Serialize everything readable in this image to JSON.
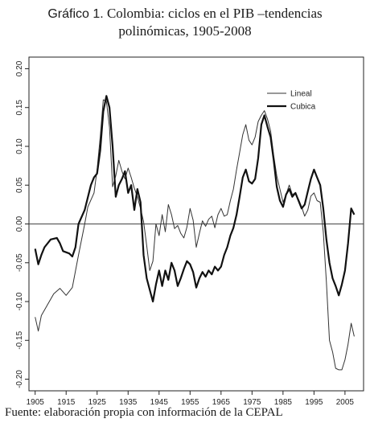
{
  "title": {
    "lead": "Gráfico 1.",
    "line1": "Colombia: ciclos en el PIB –tendencias",
    "line2": "polinómicas, 1905-2008"
  },
  "source": "Fuente: elaboración propia con información de la CEPAL",
  "chart_data": {
    "type": "line",
    "title": "Gráfico 1. Colombia: ciclos en el PIB –tendencias polinómicas, 1905-2008",
    "xlabel": "",
    "ylabel": "",
    "xlim": [
      1903,
      2011
    ],
    "ylim": [
      -0.215,
      0.215
    ],
    "x_ticks": [
      1905,
      1915,
      1925,
      1935,
      1945,
      1955,
      1965,
      1975,
      1985,
      1995,
      2005
    ],
    "y_ticks": [
      -0.2,
      -0.15,
      -0.1,
      -0.05,
      0.0,
      0.05,
      0.1,
      0.15,
      0.2
    ],
    "y_tick_labels": [
      "-0.20",
      "-0.15",
      "-0.10",
      "-0.05",
      "0.00",
      "0.05",
      "0.10",
      "0.15",
      "0.20"
    ],
    "reference_line": 0,
    "grid": false,
    "legend_position": "top-right",
    "series": [
      {
        "name": "Lineal",
        "color": "#333333",
        "points": [
          [
            1905,
            -0.12
          ],
          [
            1906,
            -0.138
          ],
          [
            1907,
            -0.118
          ],
          [
            1909,
            -0.104
          ],
          [
            1911,
            -0.09
          ],
          [
            1913,
            -0.083
          ],
          [
            1915,
            -0.092
          ],
          [
            1917,
            -0.082
          ],
          [
            1919,
            -0.04
          ],
          [
            1921,
            0.0
          ],
          [
            1922,
            0.022
          ],
          [
            1924,
            0.04
          ],
          [
            1925,
            0.07
          ],
          [
            1926,
            0.112
          ],
          [
            1927,
            0.16
          ],
          [
            1928,
            0.158
          ],
          [
            1929,
            0.125
          ],
          [
            1930,
            0.048
          ],
          [
            1931,
            0.062
          ],
          [
            1932,
            0.082
          ],
          [
            1933,
            0.068
          ],
          [
            1934,
            0.058
          ],
          [
            1935,
            0.072
          ],
          [
            1936,
            0.06
          ],
          [
            1937,
            0.046
          ],
          [
            1938,
            0.035
          ],
          [
            1939,
            0.02
          ],
          [
            1940,
            0.003
          ],
          [
            1941,
            -0.028
          ],
          [
            1942,
            -0.06
          ],
          [
            1943,
            -0.048
          ],
          [
            1944,
            0.0
          ],
          [
            1945,
            -0.015
          ],
          [
            1946,
            0.012
          ],
          [
            1947,
            -0.01
          ],
          [
            1948,
            0.025
          ],
          [
            1949,
            0.012
          ],
          [
            1950,
            -0.006
          ],
          [
            1951,
            -0.002
          ],
          [
            1952,
            -0.012
          ],
          [
            1953,
            -0.018
          ],
          [
            1954,
            -0.004
          ],
          [
            1955,
            0.02
          ],
          [
            1956,
            0.005
          ],
          [
            1957,
            -0.03
          ],
          [
            1958,
            -0.012
          ],
          [
            1959,
            0.004
          ],
          [
            1960,
            -0.003
          ],
          [
            1961,
            0.006
          ],
          [
            1962,
            0.01
          ],
          [
            1963,
            -0.005
          ],
          [
            1964,
            0.012
          ],
          [
            1965,
            0.02
          ],
          [
            1966,
            0.01
          ],
          [
            1967,
            0.012
          ],
          [
            1968,
            0.03
          ],
          [
            1969,
            0.045
          ],
          [
            1970,
            0.07
          ],
          [
            1971,
            0.092
          ],
          [
            1972,
            0.115
          ],
          [
            1973,
            0.128
          ],
          [
            1974,
            0.108
          ],
          [
            1975,
            0.102
          ],
          [
            1976,
            0.112
          ],
          [
            1977,
            0.132
          ],
          [
            1978,
            0.14
          ],
          [
            1979,
            0.146
          ],
          [
            1980,
            0.135
          ],
          [
            1981,
            0.12
          ],
          [
            1982,
            0.088
          ],
          [
            1983,
            0.062
          ],
          [
            1984,
            0.045
          ],
          [
            1985,
            0.028
          ],
          [
            1986,
            0.038
          ],
          [
            1987,
            0.05
          ],
          [
            1988,
            0.038
          ],
          [
            1989,
            0.04
          ],
          [
            1990,
            0.032
          ],
          [
            1991,
            0.022
          ],
          [
            1992,
            0.01
          ],
          [
            1993,
            0.018
          ],
          [
            1994,
            0.036
          ],
          [
            1995,
            0.04
          ],
          [
            1996,
            0.03
          ],
          [
            1997,
            0.028
          ],
          [
            1998,
            -0.01
          ],
          [
            1999,
            -0.075
          ],
          [
            2000,
            -0.15
          ],
          [
            2001,
            -0.165
          ],
          [
            2002,
            -0.186
          ],
          [
            2003,
            -0.188
          ],
          [
            2004,
            -0.188
          ],
          [
            2005,
            -0.175
          ],
          [
            2006,
            -0.155
          ],
          [
            2007,
            -0.128
          ],
          [
            2008,
            -0.145
          ]
        ]
      },
      {
        "name": "Cubica",
        "color": "#111111",
        "points": [
          [
            1905,
            -0.032
          ],
          [
            1906,
            -0.052
          ],
          [
            1907,
            -0.04
          ],
          [
            1908,
            -0.03
          ],
          [
            1910,
            -0.02
          ],
          [
            1912,
            -0.018
          ],
          [
            1913,
            -0.025
          ],
          [
            1914,
            -0.035
          ],
          [
            1916,
            -0.038
          ],
          [
            1917,
            -0.042
          ],
          [
            1918,
            -0.03
          ],
          [
            1919,
            0.0
          ],
          [
            1921,
            0.018
          ],
          [
            1923,
            0.05
          ],
          [
            1924,
            0.06
          ],
          [
            1925,
            0.065
          ],
          [
            1926,
            0.095
          ],
          [
            1927,
            0.145
          ],
          [
            1928,
            0.165
          ],
          [
            1929,
            0.15
          ],
          [
            1930,
            0.1
          ],
          [
            1931,
            0.035
          ],
          [
            1932,
            0.05
          ],
          [
            1933,
            0.058
          ],
          [
            1934,
            0.068
          ],
          [
            1935,
            0.04
          ],
          [
            1936,
            0.05
          ],
          [
            1937,
            0.018
          ],
          [
            1938,
            0.045
          ],
          [
            1939,
            0.028
          ],
          [
            1940,
            -0.04
          ],
          [
            1941,
            -0.07
          ],
          [
            1942,
            -0.085
          ],
          [
            1943,
            -0.1
          ],
          [
            1944,
            -0.078
          ],
          [
            1945,
            -0.06
          ],
          [
            1946,
            -0.08
          ],
          [
            1947,
            -0.06
          ],
          [
            1948,
            -0.072
          ],
          [
            1949,
            -0.05
          ],
          [
            1950,
            -0.06
          ],
          [
            1951,
            -0.08
          ],
          [
            1952,
            -0.07
          ],
          [
            1953,
            -0.058
          ],
          [
            1954,
            -0.048
          ],
          [
            1955,
            -0.052
          ],
          [
            1956,
            -0.062
          ],
          [
            1957,
            -0.082
          ],
          [
            1958,
            -0.07
          ],
          [
            1959,
            -0.062
          ],
          [
            1960,
            -0.068
          ],
          [
            1961,
            -0.06
          ],
          [
            1962,
            -0.065
          ],
          [
            1963,
            -0.055
          ],
          [
            1964,
            -0.06
          ],
          [
            1965,
            -0.055
          ],
          [
            1966,
            -0.04
          ],
          [
            1967,
            -0.03
          ],
          [
            1968,
            -0.015
          ],
          [
            1969,
            -0.005
          ],
          [
            1970,
            0.012
          ],
          [
            1971,
            0.035
          ],
          [
            1972,
            0.06
          ],
          [
            1973,
            0.07
          ],
          [
            1974,
            0.055
          ],
          [
            1975,
            0.052
          ],
          [
            1976,
            0.058
          ],
          [
            1977,
            0.085
          ],
          [
            1978,
            0.128
          ],
          [
            1979,
            0.14
          ],
          [
            1980,
            0.125
          ],
          [
            1981,
            0.112
          ],
          [
            1982,
            0.082
          ],
          [
            1983,
            0.048
          ],
          [
            1984,
            0.03
          ],
          [
            1985,
            0.022
          ],
          [
            1986,
            0.038
          ],
          [
            1987,
            0.045
          ],
          [
            1988,
            0.035
          ],
          [
            1989,
            0.04
          ],
          [
            1990,
            0.03
          ],
          [
            1991,
            0.02
          ],
          [
            1992,
            0.025
          ],
          [
            1993,
            0.042
          ],
          [
            1994,
            0.058
          ],
          [
            1995,
            0.07
          ],
          [
            1996,
            0.06
          ],
          [
            1997,
            0.05
          ],
          [
            1998,
            0.02
          ],
          [
            1999,
            -0.02
          ],
          [
            2000,
            -0.05
          ],
          [
            2001,
            -0.07
          ],
          [
            2002,
            -0.08
          ],
          [
            2003,
            -0.092
          ],
          [
            2004,
            -0.078
          ],
          [
            2005,
            -0.06
          ],
          [
            2006,
            -0.025
          ],
          [
            2007,
            0.02
          ],
          [
            2008,
            0.012
          ]
        ]
      }
    ]
  }
}
